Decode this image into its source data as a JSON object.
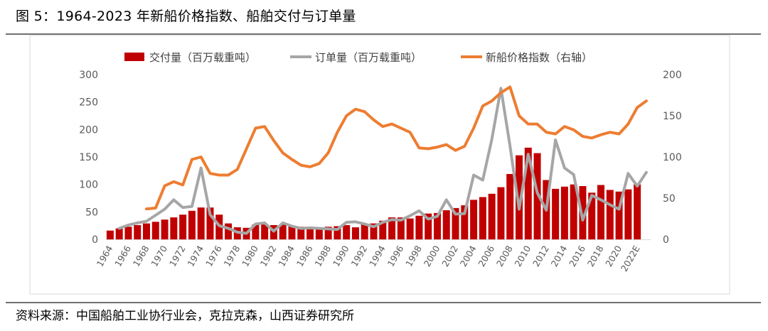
{
  "figure": {
    "title": "图 5：1964-2023 年新船价格指数、船舶交付与订单量",
    "source": "资料来源：中国船舶工业协行业会，克拉克森，山西证券研究所"
  },
  "chart_data": {
    "type": "bar",
    "title": "1964-2023 年新船价格指数、船舶交付与订单量",
    "xlabel": "",
    "ylabel": "",
    "ylim": [
      0,
      300
    ],
    "y2lim": [
      0,
      200
    ],
    "yticks": [
      "0",
      "50",
      "100",
      "150",
      "200",
      "250",
      "300"
    ],
    "y2ticks": [
      "0",
      "50",
      "100",
      "150",
      "200"
    ],
    "grid": false,
    "legend_position": "top",
    "colors": {
      "deliveries": "#C00000",
      "orders": "#A6A6A6",
      "price_index": "#ED7D31"
    },
    "categories": [
      "1964",
      "1965",
      "1966",
      "1967",
      "1968",
      "1969",
      "1970",
      "1971",
      "1972",
      "1973",
      "1974",
      "1975",
      "1976",
      "1977",
      "1978",
      "1979",
      "1980",
      "1981",
      "1982",
      "1983",
      "1984",
      "1985",
      "1986",
      "1987",
      "1988",
      "1989",
      "1990",
      "1991",
      "1992",
      "1993",
      "1994",
      "1995",
      "1996",
      "1997",
      "1998",
      "1999",
      "2000",
      "2001",
      "2002",
      "2003",
      "2004",
      "2005",
      "2006",
      "2007",
      "2008",
      "2009",
      "2010",
      "2011",
      "2012",
      "2013",
      "2014",
      "2015",
      "2016",
      "2017",
      "2018",
      "2019",
      "2020",
      "2021",
      "2022E",
      "2023E"
    ],
    "xtick_labels": [
      "1964",
      "1966",
      "1968",
      "1970",
      "1972",
      "1974",
      "1976",
      "1978",
      "1980",
      "1982",
      "1984",
      "1986",
      "1988",
      "1990",
      "1992",
      "1994",
      "1996",
      "1998",
      "2000",
      "2002",
      "2004",
      "2006",
      "2008",
      "2010",
      "2012",
      "2014",
      "2016",
      "2018",
      "2020",
      "2022E"
    ],
    "series": [
      {
        "name": "交付量（百万载重吨）",
        "type": "bar",
        "axis": "left",
        "values": [
          16,
          20,
          23,
          26,
          29,
          32,
          36,
          40,
          45,
          52,
          58,
          58,
          45,
          29,
          22,
          21,
          27,
          27,
          26,
          27,
          25,
          23,
          21,
          19,
          23,
          24,
          26,
          22,
          28,
          29,
          34,
          40,
          40,
          38,
          43,
          47,
          48,
          53,
          57,
          62,
          72,
          77,
          83,
          95,
          119,
          153,
          167,
          157,
          108,
          92,
          96,
          100,
          97,
          85,
          99,
          90,
          87,
          91,
          100,
          0
        ]
      },
      {
        "name": "订单量（百万载重吨）",
        "type": "line",
        "axis": "left",
        "values": [
          null,
          20,
          26,
          30,
          33,
          44,
          55,
          72,
          58,
          60,
          130,
          45,
          25,
          20,
          13,
          11,
          28,
          30,
          15,
          30,
          24,
          20,
          21,
          20,
          19,
          18,
          31,
          32,
          28,
          23,
          31,
          36,
          35,
          43,
          52,
          37,
          42,
          72,
          46,
          47,
          117,
          108,
          182,
          275,
          170,
          55,
          155,
          85,
          53,
          181,
          130,
          118,
          35,
          80,
          72,
          63,
          55,
          120,
          97,
          122
        ]
      },
      {
        "name": "新船价格指数（右轴）",
        "type": "line",
        "axis": "right",
        "values": [
          null,
          null,
          null,
          null,
          37,
          38,
          65,
          70,
          66,
          97,
          100,
          80,
          78,
          78,
          85,
          110,
          135,
          137,
          120,
          105,
          97,
          90,
          88,
          92,
          105,
          130,
          150,
          158,
          155,
          145,
          137,
          140,
          135,
          130,
          111,
          110,
          112,
          115,
          108,
          113,
          135,
          162,
          168,
          178,
          185,
          150,
          140,
          140,
          130,
          128,
          137,
          133,
          125,
          123,
          127,
          130,
          128,
          140,
          160,
          168
        ]
      }
    ]
  },
  "legend": {
    "items": [
      {
        "label": "交付量（百万载重吨）",
        "kind": "bar"
      },
      {
        "label": "订单量（百万载重吨）",
        "kind": "line"
      },
      {
        "label": "新船价格指数（右轴）",
        "kind": "line"
      }
    ]
  }
}
